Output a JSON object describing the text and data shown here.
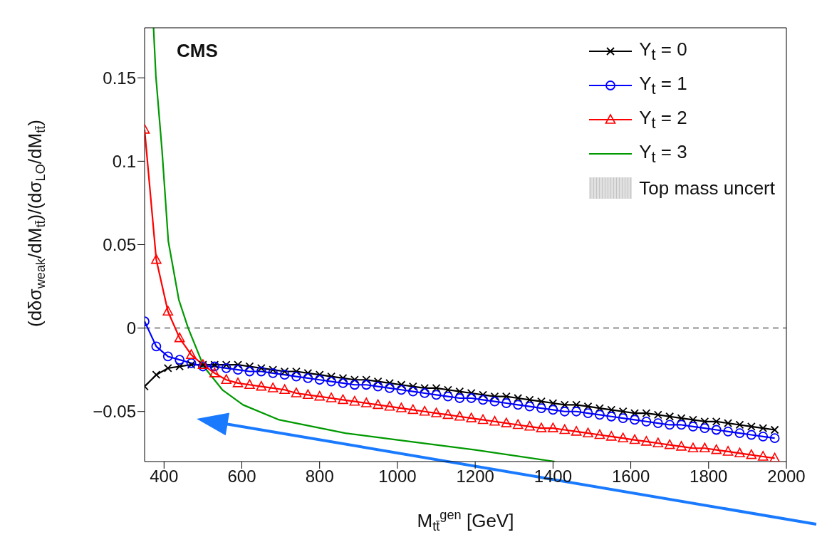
{
  "chart_data": {
    "type": "line",
    "xlabel": "M$_{tt̄}$$^{gen}$ [GeV]",
    "ylabel": "(dδσ$_{weak}$/dM$_{tt̄}$)/(dσ$_{LO}$/dM$_{tt̄}$)",
    "annotations": [
      "CMS"
    ],
    "x": [
      350,
      380,
      410,
      440,
      470,
      500,
      530,
      560,
      590,
      620,
      650,
      680,
      710,
      740,
      770,
      800,
      830,
      860,
      890,
      920,
      950,
      980,
      1010,
      1040,
      1070,
      1100,
      1130,
      1160,
      1190,
      1220,
      1250,
      1280,
      1310,
      1340,
      1370,
      1400,
      1430,
      1460,
      1490,
      1520,
      1550,
      1580,
      1610,
      1640,
      1670,
      1700,
      1730,
      1760,
      1790,
      1820,
      1850,
      1880,
      1910,
      1940,
      1970
    ],
    "series": [
      {
        "name": "Y$_{t}$ = 0",
        "color": "#000000",
        "marker": "cross",
        "values": [
          -0.035,
          -0.028,
          -0.024,
          -0.023,
          -0.022,
          -0.022,
          -0.022,
          -0.022,
          -0.022,
          -0.023,
          -0.024,
          -0.025,
          -0.026,
          -0.026,
          -0.027,
          -0.028,
          -0.029,
          -0.03,
          -0.031,
          -0.031,
          -0.032,
          -0.033,
          -0.034,
          -0.035,
          -0.036,
          -0.036,
          -0.037,
          -0.038,
          -0.039,
          -0.04,
          -0.041,
          -0.041,
          -0.042,
          -0.043,
          -0.044,
          -0.045,
          -0.046,
          -0.046,
          -0.047,
          -0.048,
          -0.049,
          -0.05,
          -0.051,
          -0.051,
          -0.052,
          -0.053,
          -0.054,
          -0.055,
          -0.056,
          -0.056,
          -0.057,
          -0.058,
          -0.059,
          -0.06,
          -0.061
        ]
      },
      {
        "name": "Y$_{t}$ = 1",
        "color": "#0000ff",
        "marker": "circle",
        "values": [
          0.004,
          -0.011,
          -0.017,
          -0.019,
          -0.021,
          -0.023,
          -0.023,
          -0.024,
          -0.025,
          -0.026,
          -0.026,
          -0.027,
          -0.028,
          -0.029,
          -0.03,
          -0.031,
          -0.032,
          -0.033,
          -0.034,
          -0.034,
          -0.035,
          -0.036,
          -0.037,
          -0.038,
          -0.039,
          -0.04,
          -0.041,
          -0.042,
          -0.042,
          -0.043,
          -0.044,
          -0.045,
          -0.046,
          -0.047,
          -0.048,
          -0.049,
          -0.05,
          -0.05,
          -0.051,
          -0.052,
          -0.053,
          -0.054,
          -0.055,
          -0.056,
          -0.057,
          -0.058,
          -0.058,
          -0.059,
          -0.06,
          -0.061,
          -0.062,
          -0.063,
          -0.064,
          -0.065,
          -0.066
        ]
      },
      {
        "name": "Y$_{t}$ = 2",
        "color": "#ff0000",
        "marker": "triangle",
        "values": [
          0.119,
          0.041,
          0.01,
          -0.006,
          -0.016,
          -0.022,
          -0.027,
          -0.031,
          -0.033,
          -0.034,
          -0.035,
          -0.036,
          -0.037,
          -0.039,
          -0.04,
          -0.041,
          -0.042,
          -0.043,
          -0.044,
          -0.045,
          -0.046,
          -0.047,
          -0.048,
          -0.049,
          -0.05,
          -0.051,
          -0.052,
          -0.053,
          -0.054,
          -0.055,
          -0.056,
          -0.057,
          -0.058,
          -0.059,
          -0.06,
          -0.06,
          -0.061,
          -0.062,
          -0.063,
          -0.064,
          -0.065,
          -0.066,
          -0.067,
          -0.068,
          -0.069,
          -0.07,
          -0.071,
          -0.072,
          -0.072,
          -0.073,
          -0.074,
          -0.075,
          -0.076,
          -0.077,
          -0.078
        ]
      },
      {
        "name": "Y$_{t}$ = 3",
        "color": "#009900",
        "marker": "none",
        "x": [
          373,
          379,
          395,
          411,
          438,
          462,
          502,
          550,
          603,
          696,
          866,
          1000,
          1200,
          1405
        ],
        "values": [
          0.18,
          0.151,
          0.106,
          0.052,
          0.017,
          0,
          -0.023,
          -0.037,
          -0.046,
          -0.055,
          -0.063,
          -0.067,
          -0.073,
          -0.08
        ]
      },
      {
        "name": "Top mass uncert",
        "type": "area",
        "color": "#bbbbbb",
        "values": [
          null,
          null,
          null,
          null,
          null,
          null,
          null,
          null,
          null,
          null,
          null,
          null,
          null,
          null,
          null,
          null,
          null,
          null,
          null,
          null,
          null,
          null,
          null,
          null,
          null,
          null,
          null,
          null,
          null,
          null,
          null,
          null,
          null,
          null,
          null,
          null,
          null,
          null,
          null,
          null,
          null,
          null,
          null,
          null,
          null,
          null,
          null,
          null,
          null,
          null,
          null,
          null,
          null,
          null,
          null
        ]
      }
    ],
    "xlim": [
      350,
      2000
    ],
    "xticks": [
      400,
      600,
      800,
      1000,
      1200,
      1400,
      1600,
      1800,
      2000
    ],
    "ylim": [
      -0.08,
      0.18
    ],
    "yticks": [
      {
        "value": -0.05,
        "label": "−0.05"
      },
      0,
      0.05,
      0.1,
      0.15
    ],
    "ref_lines": [
      {
        "axis": "y",
        "value": 0,
        "color": "#666666",
        "line_style": "dashed"
      }
    ],
    "legend": "top right"
  }
}
